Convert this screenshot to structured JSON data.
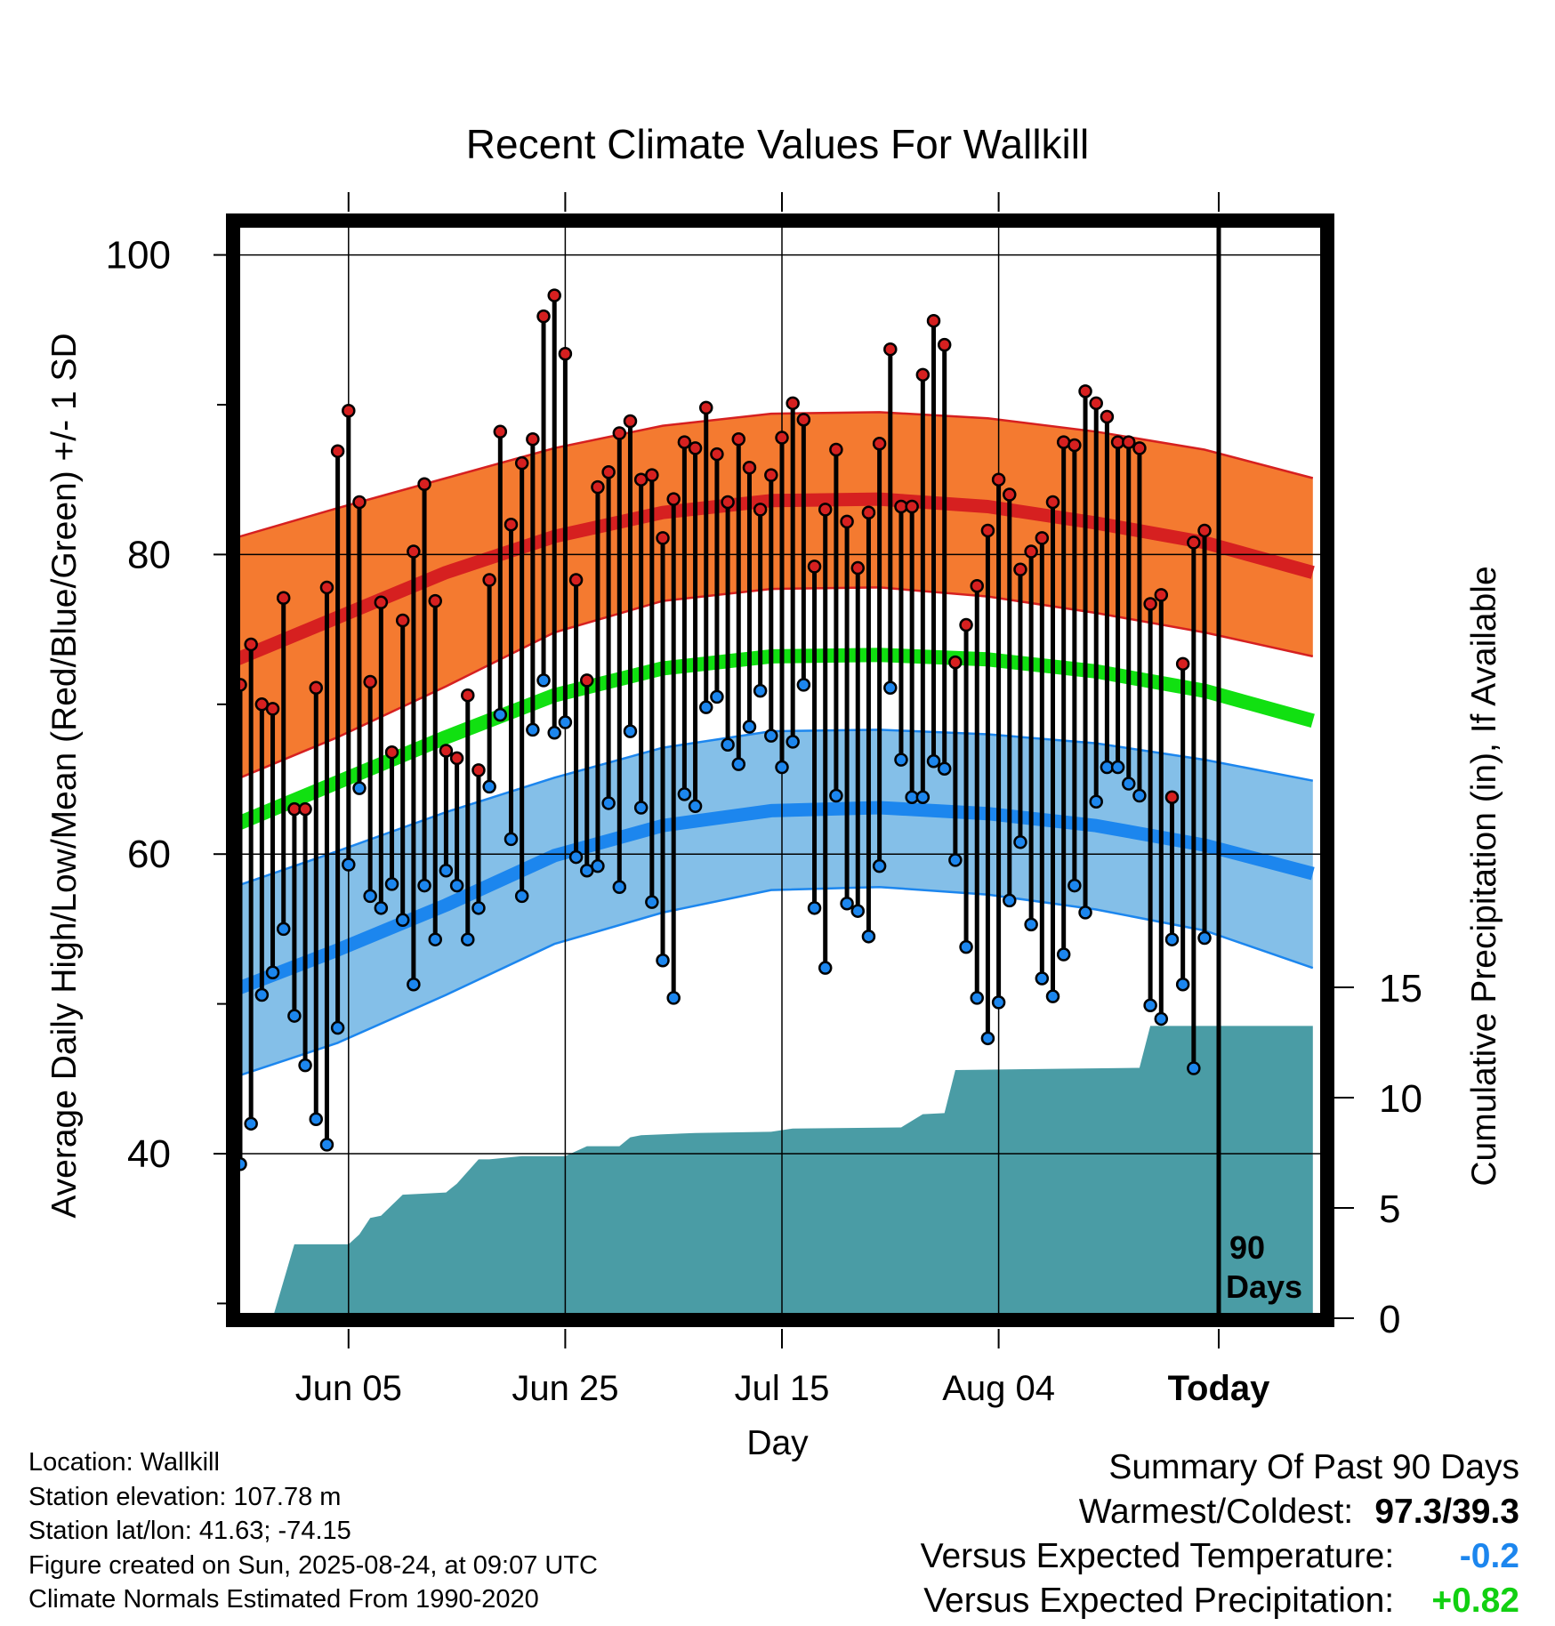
{
  "chart_data": {
    "type": "line",
    "title": "Recent Climate Values For Wallkill",
    "xlabel": "Day",
    "ylabel": "Average Daily High/Low/Mean (Red/Blue/Green) +/- 1 SD",
    "y2label": "Cumulative Precipitation (in), If Available",
    "ylim": [
      29,
      102
    ],
    "y2lim": [
      0,
      17
    ],
    "yticks": [
      100,
      80,
      60,
      40
    ],
    "y2ticks": [
      15,
      10,
      5,
      0
    ],
    "xticks": [
      "Jun 05",
      "Jun 25",
      "Jul 15",
      "Aug 04",
      "Today"
    ],
    "days_marker": "90\nDays",
    "grid": true,
    "legend": "none",
    "colors": {
      "high": "#d62020",
      "high_band": "#f47a30",
      "mean": "#11e011",
      "low": "#1c86ee",
      "low_band": "#84bfe8",
      "precip": "#4a9ca5",
      "high_point": "#d62020",
      "low_point": "#1c86ee"
    },
    "normals": {
      "x": [
        "May 25",
        "Jun 04",
        "Jun 14",
        "Jun 24",
        "Jul 04",
        "Jul 14",
        "Jul 24",
        "Aug 03",
        "Aug 13",
        "Aug 23",
        "Sep 02"
      ],
      "high_mean": [
        72.8,
        75.8,
        78.8,
        81.2,
        82.8,
        83.6,
        83.7,
        83.2,
        82.1,
        80.8,
        78.8
      ],
      "high_plus_sd": [
        81.0,
        83.1,
        85.1,
        87.1,
        88.6,
        89.4,
        89.5,
        89.1,
        88.2,
        87.0,
        85.1
      ],
      "high_minus_sd": [
        64.8,
        67.8,
        71.2,
        74.8,
        76.9,
        77.7,
        77.8,
        77.2,
        76.1,
        74.8,
        73.2
      ],
      "mean": [
        61.8,
        64.8,
        67.8,
        70.6,
        72.4,
        73.2,
        73.3,
        73.0,
        72.2,
        70.9,
        68.9
      ],
      "low_mean": [
        50.8,
        53.6,
        56.6,
        59.9,
        61.9,
        62.9,
        63.1,
        62.7,
        61.9,
        60.6,
        58.7
      ],
      "low_plus_sd": [
        57.7,
        60.2,
        62.8,
        65.1,
        67.1,
        68.2,
        68.3,
        68.0,
        67.4,
        66.3,
        64.9
      ],
      "low_minus_sd": [
        45.0,
        47.4,
        50.6,
        54.0,
        56.1,
        57.6,
        57.8,
        57.3,
        56.3,
        54.9,
        52.4
      ]
    },
    "daily": {
      "x": [
        "May 26",
        "May 27",
        "May 28",
        "May 29",
        "May 30",
        "May 31",
        "Jun 01",
        "Jun 02",
        "Jun 03",
        "Jun 04",
        "Jun 05",
        "Jun 06",
        "Jun 07",
        "Jun 08",
        "Jun 09",
        "Jun 10",
        "Jun 11",
        "Jun 12",
        "Jun 13",
        "Jun 14",
        "Jun 15",
        "Jun 16",
        "Jun 17",
        "Jun 18",
        "Jun 19",
        "Jun 20",
        "Jun 21",
        "Jun 22",
        "Jun 23",
        "Jun 24",
        "Jun 25",
        "Jun 26",
        "Jun 27",
        "Jun 28",
        "Jun 29",
        "Jun 30",
        "Jul 01",
        "Jul 02",
        "Jul 03",
        "Jul 04",
        "Jul 05",
        "Jul 06",
        "Jul 07",
        "Jul 08",
        "Jul 09",
        "Jul 10",
        "Jul 11",
        "Jul 12",
        "Jul 13",
        "Jul 14",
        "Jul 15",
        "Jul 16",
        "Jul 17",
        "Jul 18",
        "Jul 19",
        "Jul 20",
        "Jul 21",
        "Jul 22",
        "Jul 23",
        "Jul 24",
        "Jul 25",
        "Jul 26",
        "Jul 27",
        "Jul 28",
        "Jul 29",
        "Jul 30",
        "Jul 31",
        "Aug 01",
        "Aug 02",
        "Aug 03",
        "Aug 04",
        "Aug 05",
        "Aug 06",
        "Aug 07",
        "Aug 08",
        "Aug 09",
        "Aug 10",
        "Aug 11",
        "Aug 12",
        "Aug 13",
        "Aug 14",
        "Aug 15",
        "Aug 16",
        "Aug 17",
        "Aug 18",
        "Aug 19",
        "Aug 20",
        "Aug 21",
        "Aug 22",
        "Aug 23"
      ],
      "high": [
        71.3,
        74.0,
        70.0,
        69.7,
        77.1,
        63.0,
        63.0,
        71.1,
        77.8,
        86.9,
        89.6,
        83.5,
        71.5,
        76.8,
        66.8,
        75.6,
        80.2,
        84.7,
        76.9,
        66.9,
        66.4,
        70.6,
        65.6,
        78.3,
        88.2,
        82.0,
        86.1,
        87.7,
        95.9,
        97.3,
        93.4,
        78.3,
        71.6,
        84.5,
        85.5,
        88.1,
        88.9,
        85.0,
        85.3,
        81.1,
        83.7,
        87.5,
        87.1,
        89.8,
        86.7,
        83.5,
        87.7,
        85.8,
        83.0,
        85.3,
        87.8,
        90.1,
        89.0,
        79.2,
        83.0,
        87.0,
        82.2,
        79.1,
        82.8,
        87.4,
        93.7,
        83.2,
        83.2,
        92.0,
        95.6,
        94.0,
        72.8,
        75.3,
        77.9,
        81.6,
        85.0,
        84.0,
        79.0,
        80.2,
        81.1,
        83.5,
        87.5,
        87.3,
        90.9,
        90.1,
        89.2,
        87.5,
        87.5,
        87.1,
        76.7,
        77.3,
        63.8,
        72.7,
        80.8,
        81.6
      ],
      "low": [
        39.3,
        42.0,
        50.6,
        52.1,
        55.0,
        49.2,
        45.9,
        42.3,
        40.6,
        48.4,
        59.3,
        64.4,
        57.2,
        56.4,
        58.0,
        55.6,
        51.3,
        57.9,
        54.3,
        58.9,
        57.9,
        54.3,
        56.4,
        64.5,
        69.3,
        61.0,
        57.2,
        68.3,
        71.6,
        68.1,
        68.8,
        59.8,
        58.9,
        59.2,
        63.4,
        57.8,
        68.2,
        63.1,
        56.8,
        52.9,
        50.4,
        64.0,
        63.2,
        69.8,
        70.5,
        67.3,
        66.0,
        68.5,
        70.9,
        67.9,
        65.8,
        67.5,
        71.3,
        56.4,
        52.4,
        63.9,
        56.7,
        56.2,
        54.5,
        59.2,
        71.1,
        66.3,
        63.8,
        63.8,
        66.2,
        65.7,
        59.6,
        53.8,
        50.4,
        47.7,
        50.1,
        56.9,
        60.8,
        55.3,
        51.7,
        50.5,
        53.3,
        57.9,
        56.1,
        63.5,
        65.8,
        65.8,
        64.7,
        63.9,
        49.9,
        49.0,
        54.3,
        51.3,
        45.7,
        54.4
      ]
    },
    "precip_cumulative": {
      "x": [
        "May 26",
        "May 29",
        "May 31",
        "Jun 04",
        "Jun 05",
        "Jun 06",
        "Jun 07",
        "Jun 08",
        "Jun 10",
        "Jun 14",
        "Jun 15",
        "Jun 17",
        "Jun 18",
        "Jun 21",
        "Jun 23",
        "Jun 25",
        "Jun 27",
        "Jun 30",
        "Jul 01",
        "Jul 02",
        "Jul 07",
        "Jul 14",
        "Jul 16",
        "Jul 26",
        "Jul 28",
        "Jul 30",
        "Jul 31",
        "Aug 17",
        "Aug 18",
        "Sep 02"
      ],
      "values": [
        0,
        0,
        3.35,
        3.35,
        3.35,
        3.8,
        4.55,
        4.65,
        5.6,
        5.7,
        6.1,
        7.2,
        7.2,
        7.35,
        7.35,
        7.35,
        7.8,
        7.8,
        8.2,
        8.3,
        8.4,
        8.45,
        8.6,
        8.65,
        9.25,
        9.3,
        11.25,
        11.35,
        13.25,
        13.25
      ]
    }
  },
  "info": {
    "location": "Location: Wallkill",
    "elevation": "Station elevation: 107.78 m",
    "latlon": "Station lat/lon: 41.63; -74.15",
    "created": "Figure created on Sun, 2025-08-24, at 09:07 UTC",
    "normals": "Climate Normals Estimated From 1990-2020"
  },
  "summary": {
    "title": "Summary Of Past 90 Days",
    "warm_label": "Warmest/Coldest:",
    "warm_value": "97.3/39.3",
    "temp_label": "Versus Expected Temperature:",
    "temp_value": "-0.2",
    "temp_color": "#1c86ee",
    "precip_label": "Versus Expected Precipitation:",
    "precip_value": "+0.82",
    "precip_color": "#11d011"
  }
}
